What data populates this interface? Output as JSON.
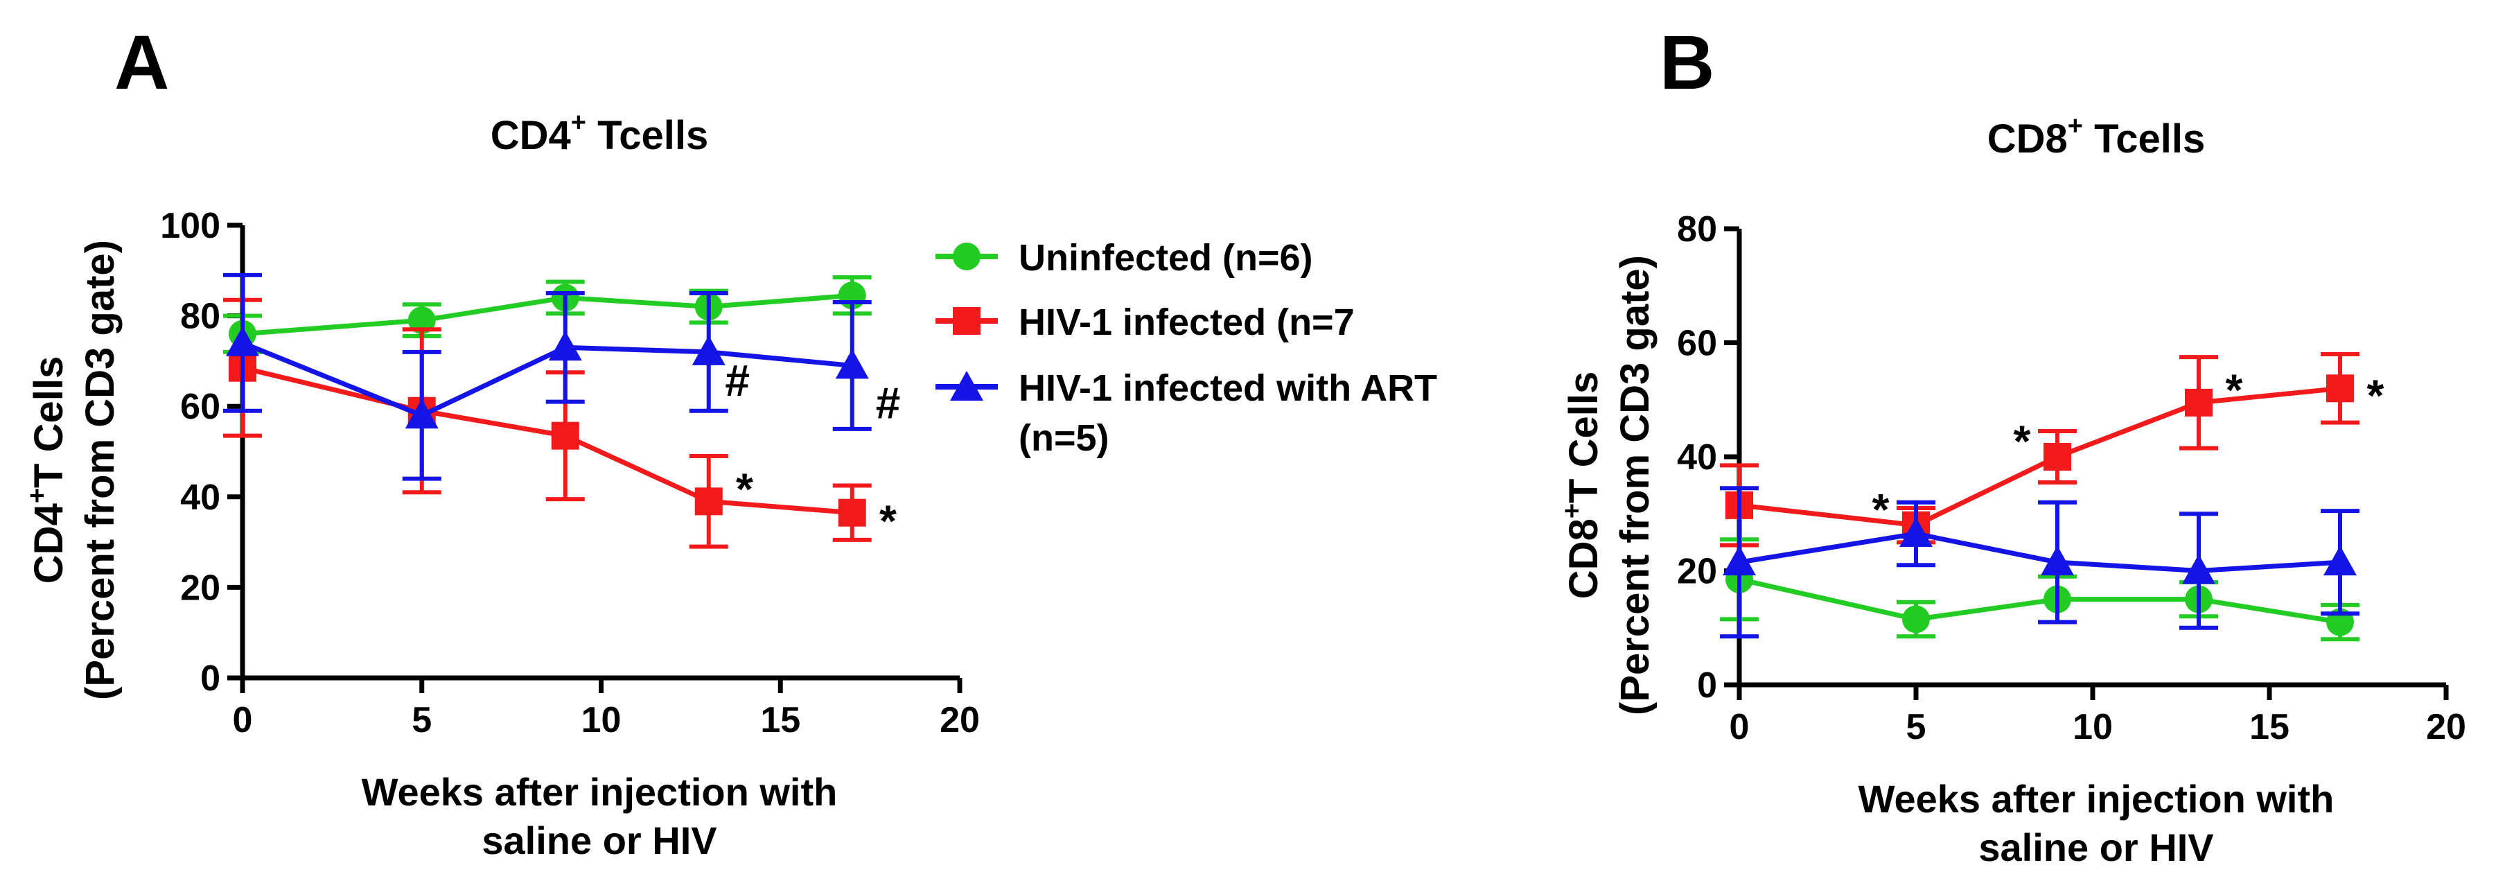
{
  "colors": {
    "uninfected": "#22cc22",
    "hiv": "#f21a1a",
    "art": "#1414e6"
  },
  "legend": {
    "placement": "right of panel A",
    "entries": [
      {
        "label": "Uninfected (n=6)",
        "color": "#22cc22",
        "marker": "circle"
      },
      {
        "label": "HIV-1 infected (n=7",
        "color": "#f21a1a",
        "marker": "square"
      },
      {
        "label_line1": "HIV-1 infected with ART",
        "label_line2": "(n=5)",
        "color": "#1414e6",
        "marker": "triangle"
      }
    ]
  },
  "chart_data": [
    {
      "panel": "A",
      "type": "line",
      "title_main": "CD4",
      "title_sup": "+",
      "title_rest": " Tcells",
      "xlabel_line1": "Weeks after injection with",
      "xlabel_line2": "saline or HIV",
      "ylabel_line1_main": "CD4",
      "ylabel_line1_sup": "+",
      "ylabel_line1_rest": "T Cells",
      "ylabel_line2": "(Percent from CD3 gate)",
      "xlim": [
        0,
        20
      ],
      "ylim": [
        0,
        100
      ],
      "xticks": [
        0,
        5,
        10,
        15,
        20
      ],
      "yticks": [
        0,
        20,
        40,
        60,
        80,
        100
      ],
      "grid": false,
      "series": [
        {
          "name": "Uninfected (n=6)",
          "color": "#22cc22",
          "marker": "circle",
          "x": [
            0,
            5,
            9,
            13,
            17
          ],
          "y": [
            76,
            79,
            84,
            82,
            84.5
          ],
          "err": [
            4,
            3.5,
            3.5,
            3.5,
            4
          ]
        },
        {
          "name": "HIV-1 infected (n=7",
          "color": "#f21a1a",
          "marker": "square",
          "x": [
            0,
            5,
            9,
            13,
            17
          ],
          "y": [
            68.5,
            59,
            53.5,
            39,
            36.5
          ],
          "err": [
            15,
            18,
            14,
            10,
            6
          ]
        },
        {
          "name": "HIV-1 infected with ART (n=5)",
          "color": "#1414e6",
          "marker": "triangle",
          "x": [
            0,
            5,
            9,
            13,
            17
          ],
          "y": [
            74,
            58,
            73,
            72,
            69
          ],
          "err": [
            15,
            14,
            12,
            13,
            14
          ]
        }
      ],
      "annotations": [
        {
          "text": "*",
          "x": 14.0,
          "y": 42
        },
        {
          "text": "*",
          "x": 18.0,
          "y": 35
        },
        {
          "text": "#",
          "x": 13.8,
          "y": 66
        },
        {
          "text": "#",
          "x": 18.0,
          "y": 61
        }
      ]
    },
    {
      "panel": "B",
      "type": "line",
      "title_main": "CD8",
      "title_sup": "+",
      "title_rest": " Tcells",
      "xlabel_line1": "Weeks after injection with",
      "xlabel_line2": "saline or HIV",
      "ylabel_line1_main": "CD8",
      "ylabel_line1_sup": "+",
      "ylabel_line1_rest": "T Cells",
      "ylabel_line2": "(Percent from CD3 gate)",
      "xlim": [
        0,
        20
      ],
      "ylim": [
        0,
        80
      ],
      "xticks": [
        0,
        5,
        10,
        15,
        20
      ],
      "yticks": [
        0,
        20,
        40,
        60,
        80
      ],
      "grid": false,
      "series": [
        {
          "name": "Uninfected (n=6)",
          "color": "#22cc22",
          "marker": "circle",
          "x": [
            0,
            5,
            9,
            13,
            17
          ],
          "y": [
            18.5,
            11.5,
            15,
            15,
            11
          ],
          "err": [
            7,
            3,
            4,
            3,
            3
          ]
        },
        {
          "name": "HIV-1 infected (n=7",
          "color": "#f21a1a",
          "marker": "square",
          "x": [
            0,
            5,
            9,
            13,
            17
          ],
          "y": [
            31.5,
            28,
            40,
            49.5,
            52
          ],
          "err": [
            7,
            3,
            4.5,
            8,
            6
          ]
        },
        {
          "name": "HIV-1 infected with ART (n=5)",
          "color": "#1414e6",
          "marker": "triangle",
          "x": [
            0,
            5,
            9,
            13,
            17
          ],
          "y": [
            21.5,
            26.5,
            21.5,
            20,
            21.5
          ],
          "err": [
            13,
            5.5,
            10.5,
            10,
            9
          ]
        }
      ],
      "annotations": [
        {
          "text": "*",
          "x": 4.0,
          "y": 31
        },
        {
          "text": "*",
          "x": 8.0,
          "y": 43
        },
        {
          "text": "*",
          "x": 14.0,
          "y": 52
        },
        {
          "text": "*",
          "x": 18.0,
          "y": 51
        }
      ]
    }
  ]
}
